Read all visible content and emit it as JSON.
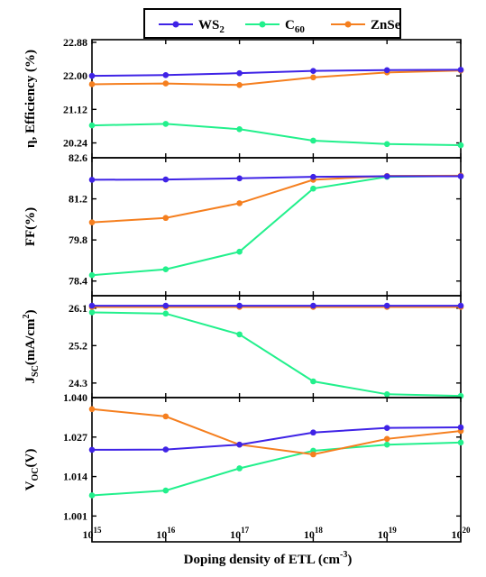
{
  "chart_data": {
    "type": "line",
    "x": [
      1000000000000000.0,
      1e+16,
      1e+17,
      1e+18,
      1e+19,
      1e+20
    ],
    "x_scale": "log",
    "x_ticks": {
      "labels": [
        {
          "base": "10",
          "exp": "15"
        },
        {
          "base": "10",
          "exp": "16"
        },
        {
          "base": "10",
          "exp": "17"
        },
        {
          "base": "10",
          "exp": "18"
        },
        {
          "base": "10",
          "exp": "19"
        },
        {
          "base": "10",
          "exp": "20"
        }
      ]
    },
    "xlabel": {
      "main": "Doping density of ETL (cm",
      "sup": "-3",
      "end": ")"
    },
    "legend": {
      "placement": "top-center",
      "entries": [
        {
          "key": "ws2",
          "base": "WS",
          "sub": "2",
          "color": "#3f23e6"
        },
        {
          "key": "c60",
          "base": "C",
          "sub": "60",
          "color": "#22f08c"
        },
        {
          "key": "znse",
          "base": "ZnSe",
          "sub": "",
          "color": "#f57f1f"
        }
      ]
    },
    "panels": [
      {
        "key": "eff",
        "ylabel": "η, Efficiency (%)",
        "ylim": [
          19.85,
          22.95
        ],
        "yticks": [
          20.24,
          21.12,
          22.0,
          22.88
        ],
        "ytick_labels": [
          "20.24",
          "21.12",
          "22.00",
          "22.88"
        ],
        "series": {
          "ws2": [
            22.0,
            22.02,
            22.07,
            22.13,
            22.15,
            22.16
          ],
          "c60": [
            20.7,
            20.74,
            20.6,
            20.3,
            20.21,
            20.18
          ],
          "znse": [
            21.78,
            21.8,
            21.76,
            21.96,
            22.09,
            22.14
          ]
        }
      },
      {
        "key": "ff",
        "ylabel_main": "FF(%)",
        "ylim": [
          77.9,
          82.6
        ],
        "yticks": [
          78.4,
          79.8,
          81.2,
          82.6
        ],
        "ytick_labels": [
          "78.4",
          "79.8",
          "81.2",
          "82.6"
        ],
        "series": {
          "ws2": [
            81.85,
            81.86,
            81.9,
            81.95,
            81.97,
            81.97
          ],
          "c60": [
            78.6,
            78.8,
            79.4,
            81.55,
            81.95,
            81.98
          ],
          "znse": [
            80.4,
            80.55,
            81.05,
            81.85,
            81.98,
            81.99
          ]
        }
      },
      {
        "key": "jsc",
        "ylabel": {
          "base": "J",
          "sub": "SC",
          "mid": "(mA/cm",
          "sup": "2",
          "end": ")"
        },
        "ylim": [
          23.95,
          26.4
        ],
        "yticks": [
          24.3,
          25.2,
          26.1
        ],
        "ytick_labels": [
          "24.3",
          "25.2",
          "26.1"
        ],
        "series": {
          "ws2": [
            26.16,
            26.16,
            26.16,
            26.16,
            26.16,
            26.16
          ],
          "c60": [
            26.0,
            25.97,
            25.47,
            24.34,
            24.03,
            23.99
          ],
          "znse": [
            26.13,
            26.13,
            26.13,
            26.13,
            26.13,
            26.13
          ]
        }
      },
      {
        "key": "voc",
        "ylabel": {
          "base": "V",
          "sub": "OC",
          "end": "(V)"
        },
        "ylim": [
          0.9925,
          1.04
        ],
        "yticks": [
          1.001,
          1.014,
          1.027,
          1.04
        ],
        "ytick_labels": [
          "1.001",
          "1.014",
          "1.027",
          "1.040"
        ],
        "series": {
          "ws2": [
            1.0228,
            1.0229,
            1.0245,
            1.0285,
            1.03,
            1.0302
          ],
          "c60": [
            1.0078,
            1.0094,
            1.0167,
            1.0225,
            1.0245,
            1.0252
          ],
          "znse": [
            1.0362,
            1.0338,
            1.0245,
            1.0213,
            1.0264,
            1.029
          ]
        }
      }
    ]
  }
}
